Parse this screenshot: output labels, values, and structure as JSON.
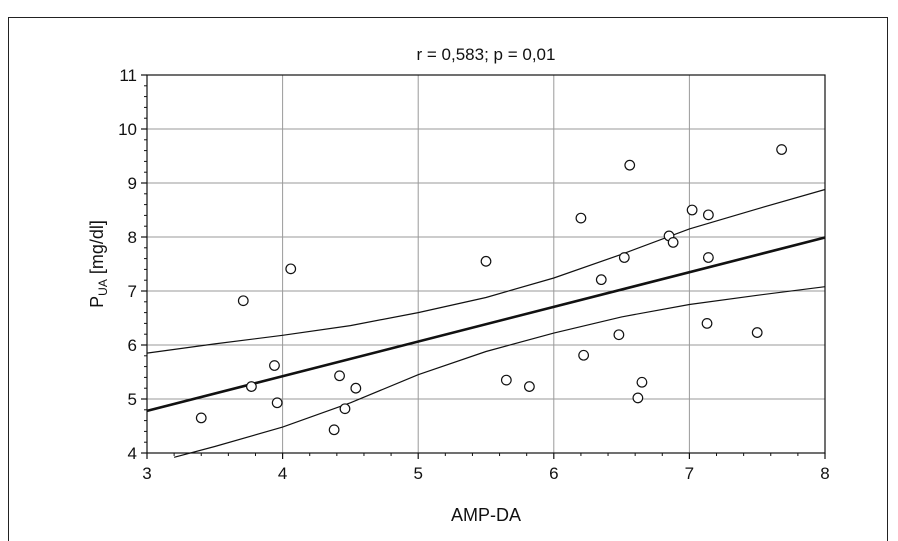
{
  "chart_data": {
    "type": "scatter",
    "title": "r = 0,583; p = 0,01",
    "xlabel": "AMP-DA",
    "ylabel_main": "P",
    "ylabel_sub": "UA",
    "ylabel_rest": " [mg/dl]",
    "xlim": [
      3,
      8
    ],
    "ylim": [
      4,
      11
    ],
    "xticks": [
      "3",
      "4",
      "5",
      "6",
      "7",
      "8"
    ],
    "yticks": [
      "4",
      "5",
      "6",
      "7",
      "8",
      "9",
      "10",
      "11"
    ],
    "grid": true,
    "points": [
      [
        3.4,
        4.65
      ],
      [
        3.71,
        6.82
      ],
      [
        3.77,
        5.23
      ],
      [
        3.94,
        5.62
      ],
      [
        3.96,
        4.93
      ],
      [
        4.06,
        7.41
      ],
      [
        4.38,
        4.43
      ],
      [
        4.42,
        5.43
      ],
      [
        4.46,
        4.82
      ],
      [
        4.54,
        5.2
      ],
      [
        5.5,
        7.55
      ],
      [
        5.65,
        5.35
      ],
      [
        5.82,
        5.23
      ],
      [
        6.2,
        8.35
      ],
      [
        6.22,
        5.81
      ],
      [
        6.35,
        7.21
      ],
      [
        6.48,
        6.19
      ],
      [
        6.52,
        7.62
      ],
      [
        6.56,
        9.33
      ],
      [
        6.62,
        5.02
      ],
      [
        6.65,
        5.31
      ],
      [
        6.85,
        8.02
      ],
      [
        6.88,
        7.9
      ],
      [
        7.02,
        8.5
      ],
      [
        7.13,
        6.4
      ],
      [
        7.14,
        8.41
      ],
      [
        7.14,
        7.62
      ],
      [
        7.5,
        6.23
      ],
      [
        7.68,
        9.62
      ]
    ],
    "regression_line": [
      [
        3.0,
        4.78
      ],
      [
        8.0,
        7.99
      ]
    ],
    "confidence_upper": [
      [
        3.0,
        5.85
      ],
      [
        3.5,
        6.02
      ],
      [
        4.0,
        6.18
      ],
      [
        4.5,
        6.36
      ],
      [
        5.0,
        6.6
      ],
      [
        5.5,
        6.88
      ],
      [
        6.0,
        7.24
      ],
      [
        6.5,
        7.68
      ],
      [
        7.0,
        8.15
      ],
      [
        7.5,
        8.52
      ],
      [
        8.0,
        8.88
      ]
    ],
    "confidence_lower": [
      [
        3.2,
        3.92
      ],
      [
        3.5,
        4.12
      ],
      [
        4.0,
        4.48
      ],
      [
        4.5,
        4.93
      ],
      [
        5.0,
        5.45
      ],
      [
        5.5,
        5.88
      ],
      [
        6.0,
        6.22
      ],
      [
        6.5,
        6.52
      ],
      [
        7.0,
        6.75
      ],
      [
        7.5,
        6.92
      ],
      [
        8.0,
        7.08
      ]
    ]
  }
}
